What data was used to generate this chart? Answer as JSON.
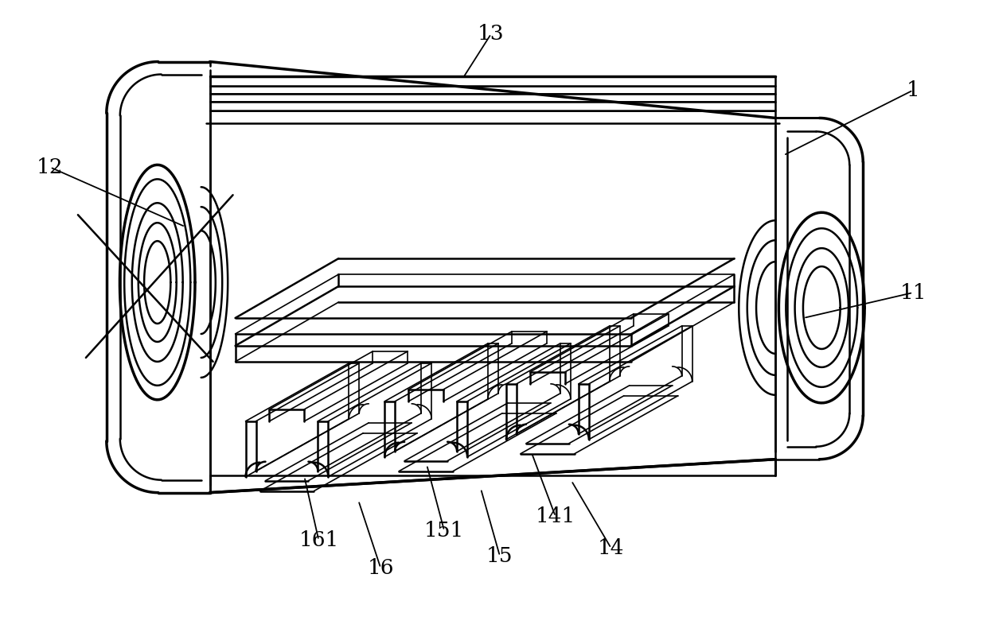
{
  "bg_color": "#ffffff",
  "lw1": 1.2,
  "lw2": 1.8,
  "lw3": 2.5,
  "annotations": [
    [
      "1",
      985,
      195,
      1148,
      113
    ],
    [
      "11",
      1010,
      400,
      1148,
      368
    ],
    [
      "12",
      232,
      285,
      62,
      210
    ],
    [
      "13",
      582,
      97,
      617,
      42
    ],
    [
      "14",
      718,
      605,
      768,
      690
    ],
    [
      "141",
      668,
      570,
      698,
      650
    ],
    [
      "15",
      604,
      615,
      628,
      700
    ],
    [
      "151",
      536,
      585,
      558,
      668
    ],
    [
      "16",
      450,
      630,
      478,
      715
    ],
    [
      "161",
      382,
      600,
      400,
      680
    ]
  ]
}
